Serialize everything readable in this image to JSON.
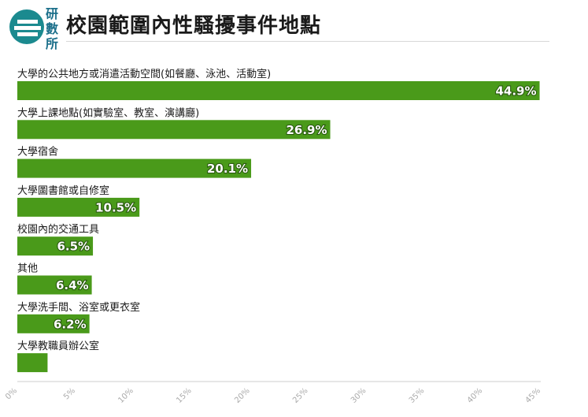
{
  "logo": {
    "chars": [
      "研",
      "數",
      "所"
    ]
  },
  "header": {
    "title": "校園範圍內性騷擾事件地點"
  },
  "colors": {
    "bar": "#4a9a1a",
    "logo": "#1b8a8f",
    "value_outline": "#2a5a10"
  },
  "chart_data": {
    "type": "bar",
    "orientation": "horizontal",
    "title": "校園範圍內性騷擾事件地點",
    "categories": [
      "大學的公共地方或消遣活動空間(如餐廳、泳池、活動室)",
      "大學上課地點(如實驗室、教室、演講廳)",
      "大學宿舍",
      "大學圖書館或自修室",
      "校園內的交通工具",
      "其他",
      "大學洗手間、浴室或更衣室",
      "大學教職員辦公室"
    ],
    "values": [
      44.9,
      26.9,
      20.1,
      10.5,
      6.5,
      6.4,
      6.2,
      2.6
    ],
    "value_labels": [
      "44.9%",
      "26.9%",
      "20.1%",
      "10.5%",
      "6.5%",
      "6.4%",
      "6.2%",
      ""
    ],
    "xlim": [
      0,
      45
    ],
    "ticks": [
      0,
      5,
      10,
      15,
      20,
      25,
      30,
      35,
      40,
      45
    ],
    "tick_labels": [
      "0%",
      "5%",
      "10%",
      "15%",
      "20%",
      "25%",
      "30%",
      "35%",
      "40%",
      "45%"
    ],
    "xlabel": "",
    "ylabel": "",
    "grid": false
  }
}
